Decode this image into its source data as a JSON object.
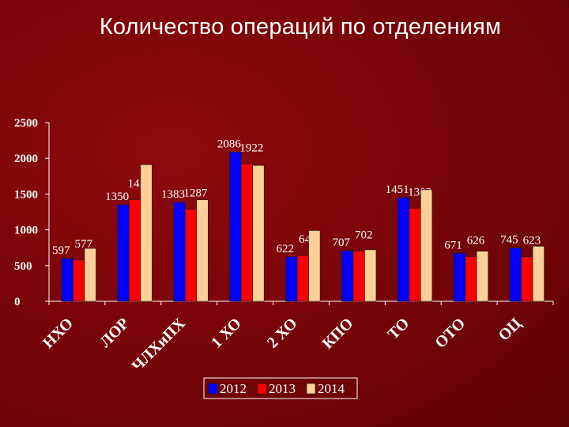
{
  "title": "Количество операций по отделениям",
  "colors": {
    "background": "#7a0507",
    "axis": "#ffffff",
    "series": [
      "#0000ff",
      "#ff0000",
      "#fdd09a"
    ]
  },
  "chart_data": {
    "type": "bar",
    "title": "Количество операций по отделениям",
    "categories": [
      "НХО",
      "ЛОР",
      "ЧЛХиПХ",
      "1 ХО",
      "2 ХО",
      "КПО",
      "ТО",
      "ОТО",
      "ОЦ"
    ],
    "series": [
      {
        "name": "2012",
        "values": [
          597,
          1350,
          1383,
          2086,
          622,
          707,
          1451,
          671,
          745
        ]
      },
      {
        "name": "2013",
        "values": [
          577,
          1421,
          1287,
          1922,
          641,
          702,
          1302,
          626,
          623
        ]
      },
      {
        "name": "2014",
        "values": [
          740,
          1910,
          1420,
          1900,
          990,
          720,
          1560,
          700,
          770
        ]
      }
    ],
    "value_labels": [
      [
        "597",
        "1350",
        "1383",
        "2086",
        "622",
        "707",
        "1451",
        "671",
        "745"
      ],
      [
        "577",
        "1421",
        "1287",
        "1922",
        "641",
        "702",
        "1302",
        "626",
        "623"
      ],
      [
        "",
        "",
        "",
        "",
        "",
        "",
        "",
        "",
        ""
      ]
    ],
    "y_ticks": [
      "0",
      "500",
      "1000",
      "1500",
      "2000",
      "2500"
    ],
    "ylim": [
      0,
      2500
    ],
    "xlabel": "",
    "ylabel": "",
    "grid": false,
    "legend_position": "bottom"
  }
}
